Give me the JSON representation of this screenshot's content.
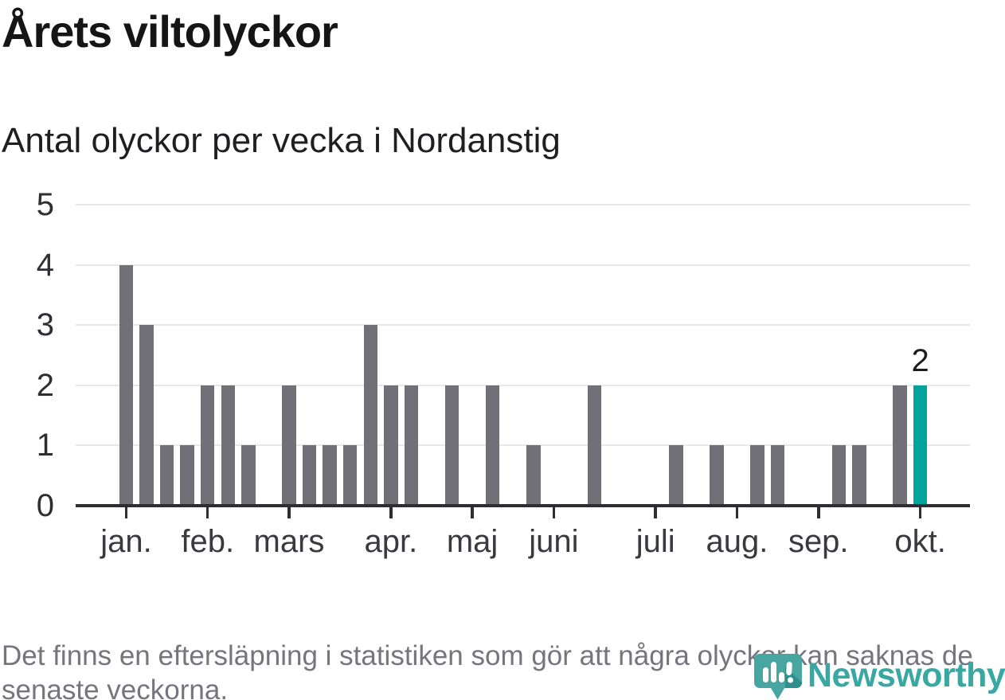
{
  "header": {
    "title": "Årets viltolyckor",
    "subtitle": "Antal olyckor per vecka i Nordanstig"
  },
  "chart_data": {
    "type": "bar",
    "title": "Årets viltolyckor",
    "subtitle": "Antal olyckor per vecka i Nordanstig",
    "x_unit": "vecka (week 1–40, jan.–okt.)",
    "values": [
      4,
      3,
      1,
      1,
      2,
      2,
      1,
      0,
      2,
      1,
      1,
      1,
      3,
      2,
      2,
      0,
      2,
      0,
      2,
      0,
      1,
      0,
      0,
      2,
      0,
      0,
      0,
      1,
      0,
      1,
      0,
      1,
      1,
      0,
      0,
      1,
      1,
      0,
      2,
      2
    ],
    "month_ticks": [
      {
        "label": "jan.",
        "index": 0
      },
      {
        "label": "feb.",
        "index": 4
      },
      {
        "label": "mars",
        "index": 8
      },
      {
        "label": "apr.",
        "index": 13
      },
      {
        "label": "maj",
        "index": 17
      },
      {
        "label": "juni",
        "index": 21
      },
      {
        "label": "juli",
        "index": 26
      },
      {
        "label": "aug.",
        "index": 30
      },
      {
        "label": "sep.",
        "index": 34
      },
      {
        "label": "okt.",
        "index": 39
      }
    ],
    "yticks": [
      0,
      1,
      2,
      3,
      4,
      5
    ],
    "ylim": [
      0,
      5
    ],
    "grid": "horizontal",
    "legend": "none",
    "highlight_index": 39,
    "annotation": {
      "index": 39,
      "text": "2"
    },
    "colors": {
      "bar": "#717076",
      "highlight": "#00a49d",
      "gridline": "#e8e8ea",
      "axis": "#2e2d33"
    }
  },
  "footer": {
    "note": "Det finns en eftersläpning i statistiken som gör att några olyckor kan saknas de senaste veckorna."
  },
  "logo": {
    "text": "Newsworthy",
    "color": "#3aa8a2",
    "icon_color": "#47a6a1",
    "icon_shade_color": "#2f8f8a"
  }
}
